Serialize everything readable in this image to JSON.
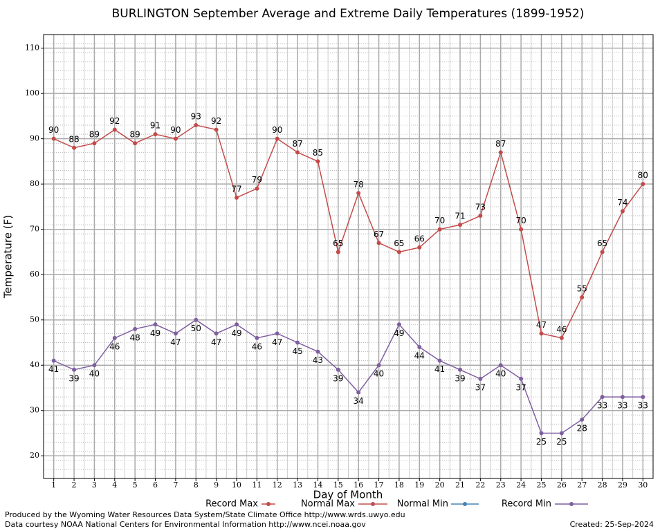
{
  "chart_data": {
    "type": "line",
    "title": "BURLINGTON September Average and Extreme Daily Temperatures (1899-1952)",
    "xlabel": "Day of Month",
    "ylabel": "Temperature (F)",
    "x": [
      1,
      2,
      3,
      4,
      5,
      6,
      7,
      8,
      9,
      10,
      11,
      12,
      13,
      14,
      15,
      16,
      17,
      18,
      19,
      20,
      21,
      22,
      23,
      24,
      25,
      26,
      27,
      28,
      29,
      30
    ],
    "series": [
      {
        "name": "Record Max",
        "color": "#c44a4a",
        "label_pos": "above",
        "values": [
          90,
          88,
          89,
          92,
          89,
          91,
          90,
          93,
          92,
          77,
          79,
          90,
          87,
          85,
          65,
          78,
          67,
          65,
          66,
          70,
          71,
          73,
          87,
          70,
          47,
          46,
          55,
          65,
          74,
          80
        ]
      },
      {
        "name": "Normal Max",
        "color": "#c0504d",
        "values": [
          null,
          null,
          null,
          null,
          null,
          null,
          null,
          null,
          null,
          null,
          null,
          null,
          null,
          null,
          null,
          null,
          null,
          null,
          null,
          null,
          null,
          null,
          null,
          null,
          null,
          null,
          null,
          null,
          null,
          null
        ]
      },
      {
        "name": "Normal Min",
        "color": "#4682b4",
        "values": [
          null,
          null,
          null,
          null,
          null,
          null,
          null,
          null,
          null,
          null,
          null,
          null,
          null,
          null,
          null,
          null,
          null,
          null,
          null,
          null,
          null,
          null,
          null,
          null,
          null,
          null,
          null,
          null,
          null,
          null
        ]
      },
      {
        "name": "Record Min",
        "color": "#7f5fa0",
        "label_pos": "below",
        "values": [
          41,
          39,
          40,
          46,
          48,
          49,
          47,
          50,
          47,
          49,
          46,
          47,
          45,
          43,
          39,
          34,
          40,
          49,
          44,
          41,
          39,
          37,
          40,
          37,
          25,
          25,
          28,
          33,
          33,
          33
        ]
      }
    ],
    "xlim": [
      0.5,
      30.5
    ],
    "xticks": [
      1,
      2,
      3,
      4,
      5,
      6,
      7,
      8,
      9,
      10,
      11,
      12,
      13,
      14,
      15,
      16,
      17,
      18,
      19,
      20,
      21,
      22,
      23,
      24,
      25,
      26,
      27,
      28,
      29,
      30
    ],
    "ylim": [
      15,
      113
    ],
    "yticks": [
      20,
      30,
      40,
      50,
      60,
      70,
      80,
      90,
      100,
      110
    ],
    "grid": true,
    "footer_left": [
      "Produced by the Wyoming Water Resources Data System/State Climate Office http://www.wrds.uwyo.edu",
      "Data courtesy NOAA National Centers for Environmental Information http://www.ncei.noaa.gov"
    ],
    "footer_right": "Created:  25-Sep-2024"
  }
}
